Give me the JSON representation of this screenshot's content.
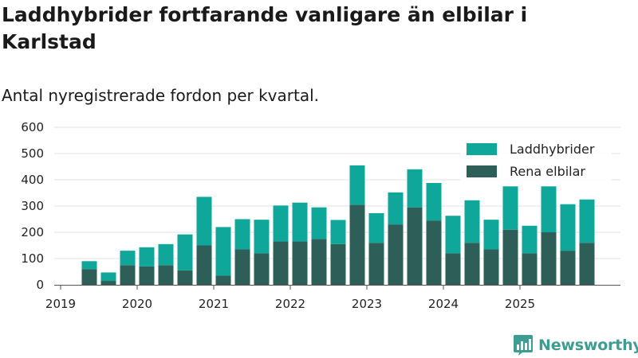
{
  "header": {
    "title": "Laddhybrider fortfarande vanligare än elbilar i Karlstad",
    "subtitle": "Antal nyregistrerade fordon per kvartal."
  },
  "brand": {
    "name": "Newsworthy",
    "color": "#3d9d92"
  },
  "chart_data": {
    "type": "bar",
    "stacked": true,
    "title": "Laddhybrider fortfarande vanligare än elbilar i Karlstad",
    "subtitle": "Antal nyregistrerade fordon per kvartal.",
    "xlabel": "",
    "ylabel": "",
    "ylim": [
      0,
      600
    ],
    "yticks": [
      0,
      100,
      200,
      300,
      400,
      500,
      600
    ],
    "grid": true,
    "legend_position": "top-right",
    "x_tick_labels": [
      "2019",
      "2020",
      "2021",
      "2022",
      "2023",
      "2024",
      "2025"
    ],
    "categories": [
      "2019 Q2",
      "2019 Q3",
      "2019 Q4",
      "2020 Q1",
      "2020 Q2",
      "2020 Q3",
      "2020 Q4",
      "2021 Q1",
      "2021 Q2",
      "2021 Q3",
      "2021 Q4",
      "2022 Q1",
      "2022 Q2",
      "2022 Q3",
      "2022 Q4",
      "2023 Q1",
      "2023 Q2",
      "2023 Q3",
      "2023 Q4",
      "2024 Q1",
      "2024 Q2",
      "2024 Q3",
      "2024 Q4",
      "2025 Q1",
      "2025 Q2",
      "2025 Q3",
      "2025 Q4"
    ],
    "series": [
      {
        "name": "Rena elbilar",
        "color": "#2d5f58",
        "values": [
          60,
          15,
          75,
          70,
          75,
          55,
          150,
          35,
          135,
          120,
          165,
          165,
          175,
          155,
          305,
          160,
          230,
          295,
          245,
          120,
          160,
          135,
          210,
          120,
          200,
          130,
          160
        ]
      },
      {
        "name": "Laddhybrider",
        "color": "#10a79b",
        "values": [
          30,
          32,
          55,
          73,
          80,
          137,
          185,
          185,
          115,
          128,
          137,
          148,
          120,
          92,
          150,
          113,
          122,
          145,
          143,
          143,
          162,
          113,
          165,
          105,
          175,
          177,
          165
        ]
      }
    ]
  }
}
